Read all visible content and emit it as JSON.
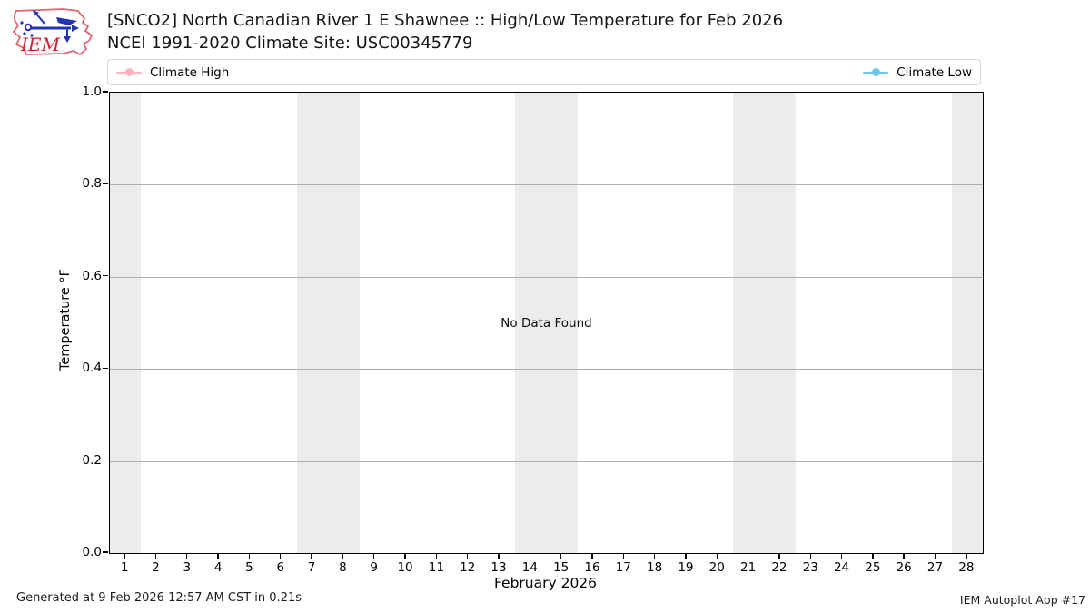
{
  "header": {
    "logo_text": "IEM",
    "title_line1": "[SNCO2] North Canadian River 1 E Shawnee :: High/Low Temperature for Feb 2026",
    "title_line2": "NCEI 1991-2020 Climate Site: USC00345779"
  },
  "legend": {
    "items": [
      {
        "label": "Climate High",
        "color": "#ffb3c2"
      },
      {
        "label": "Climate Low",
        "color": "#6ec6e8"
      }
    ]
  },
  "chart": {
    "no_data_text": "No Data Found",
    "ylabel": "Temperature °F",
    "xlabel": "February 2026"
  },
  "footer": {
    "left": "Generated at 9 Feb 2026 12:57 AM CST in 0.21s",
    "right": "IEM Autoplot App #17"
  },
  "chart_data": {
    "type": "line",
    "title": "[SNCO2] North Canadian River 1 E Shawnee :: High/Low Temperature for Feb 2026",
    "subtitle": "NCEI 1991-2020 Climate Site: USC00345779",
    "xlabel": "February 2026",
    "ylabel": "Temperature °F",
    "x": [
      1,
      2,
      3,
      4,
      5,
      6,
      7,
      8,
      9,
      10,
      11,
      12,
      13,
      14,
      15,
      16,
      17,
      18,
      19,
      20,
      21,
      22,
      23,
      24,
      25,
      26,
      27,
      28
    ],
    "xlim": [
      0.5,
      28.5
    ],
    "ylim": [
      0.0,
      1.0
    ],
    "yticks": [
      0.0,
      0.2,
      0.4,
      0.6,
      0.8,
      1.0
    ],
    "gridlines": [
      0.2,
      0.4,
      0.6,
      0.8
    ],
    "grid": true,
    "legend_position": "top",
    "series": [
      {
        "name": "Climate High",
        "color": "#ffb3c2",
        "values": []
      },
      {
        "name": "Climate Low",
        "color": "#6ec6e8",
        "values": []
      }
    ],
    "annotations": [
      "No Data Found"
    ],
    "weekend_shading_day_ranges": [
      [
        0.5,
        1.5
      ],
      [
        6.5,
        8.5
      ],
      [
        13.5,
        15.5
      ],
      [
        20.5,
        22.5
      ],
      [
        27.5,
        28.5
      ]
    ],
    "shading_color": "#ececec"
  }
}
